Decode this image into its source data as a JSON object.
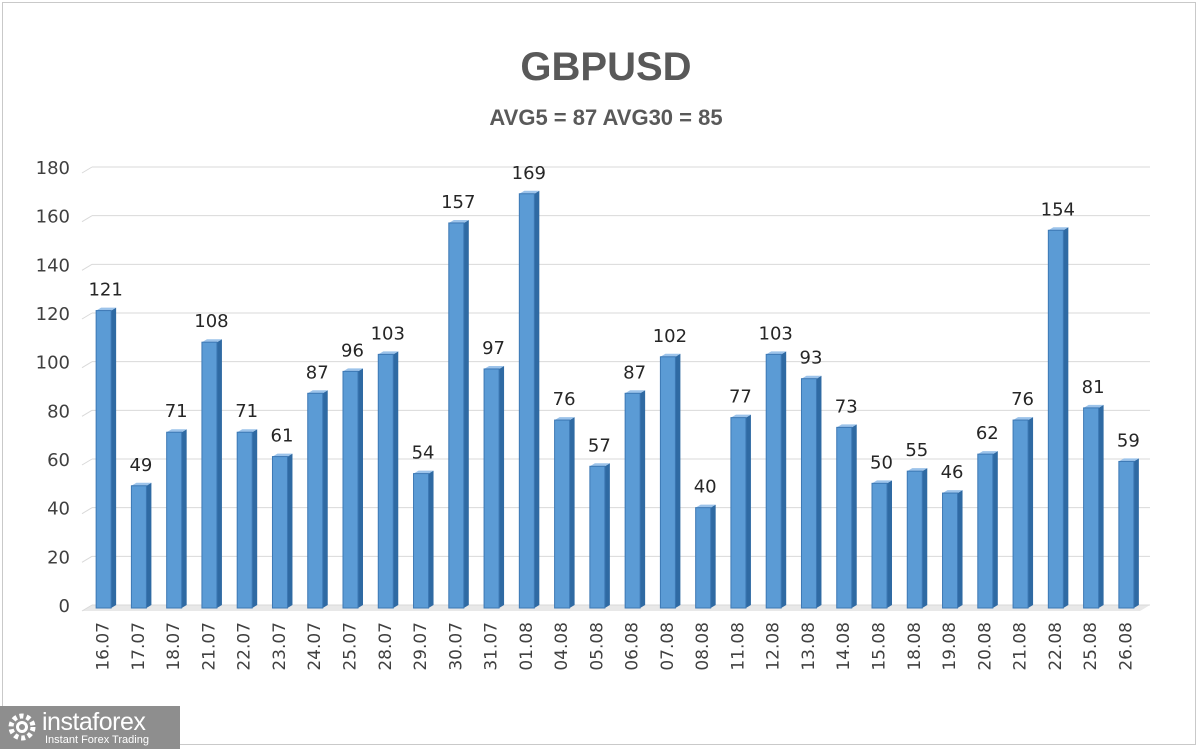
{
  "chart_data": {
    "type": "bar",
    "title": "GBPUSD",
    "subtitle": "AVG5 = 87 AVG30 = 85",
    "xlabel": "",
    "ylabel": "",
    "ylim": [
      0,
      180
    ],
    "yticks": [
      0,
      20,
      40,
      60,
      80,
      100,
      120,
      140,
      160,
      180
    ],
    "grid": true,
    "bar_color": "#5b9bd5",
    "categories": [
      "16.07",
      "17.07",
      "18.07",
      "21.07",
      "22.07",
      "23.07",
      "24.07",
      "25.07",
      "28.07",
      "29.07",
      "30.07",
      "31.07",
      "01.08",
      "04.08",
      "05.08",
      "06.08",
      "07.08",
      "08.08",
      "11.08",
      "12.08",
      "13.08",
      "14.08",
      "15.08",
      "18.08",
      "19.08",
      "20.08",
      "21.08",
      "22.08",
      "25.08",
      "26.08"
    ],
    "values": [
      121,
      49,
      71,
      108,
      71,
      61,
      87,
      96,
      103,
      54,
      157,
      97,
      169,
      76,
      57,
      87,
      102,
      40,
      77,
      103,
      93,
      73,
      50,
      55,
      46,
      62,
      76,
      154,
      81,
      59
    ]
  },
  "logo": {
    "name": "instaforex",
    "tagline": "Instant Forex Trading"
  }
}
